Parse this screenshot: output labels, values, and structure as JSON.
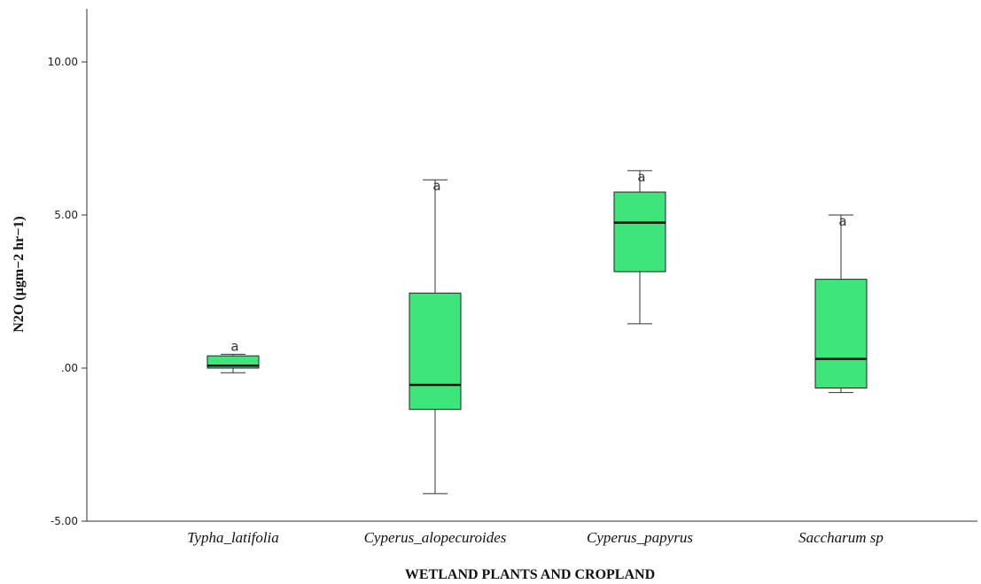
{
  "chart_data": {
    "type": "box",
    "title": "",
    "xlabel": "WETLAND PLANTS AND CROPLAND",
    "ylabel": "N2O (µgm−2 hr−1)",
    "ylim": [
      -5,
      12
    ],
    "y_ticks": [
      {
        "value": 10,
        "label": "10.00"
      },
      {
        "value": 5,
        "label": "5.00"
      },
      {
        "value": 0,
        "label": ".00"
      },
      {
        "value": -5,
        "label": "-5.00"
      }
    ],
    "grid": false,
    "box_color": "#3de57a",
    "categories": [
      "Typha_latifolia",
      "Cyperus_alopecuroides",
      "Cyperus_papyrus",
      "Saccharum sp"
    ],
    "boxes": [
      {
        "category": "Typha_latifolia",
        "min": -0.15,
        "q1": 0.0,
        "median": 0.08,
        "q3": 0.4,
        "max": 0.45,
        "letter": "a"
      },
      {
        "category": "Cyperus_alopecuroides",
        "min": -4.1,
        "q1": -1.35,
        "median": -0.55,
        "q3": 2.45,
        "max": 6.15,
        "letter": "a"
      },
      {
        "category": "Cyperus_papyrus",
        "min": 1.45,
        "q1": 3.15,
        "median": 4.75,
        "q3": 5.75,
        "max": 6.45,
        "letter": "a"
      },
      {
        "category": "Saccharum sp",
        "min": -0.8,
        "q1": -0.65,
        "median": 0.3,
        "q3": 2.9,
        "max": 5.0,
        "letter": "a"
      }
    ]
  }
}
